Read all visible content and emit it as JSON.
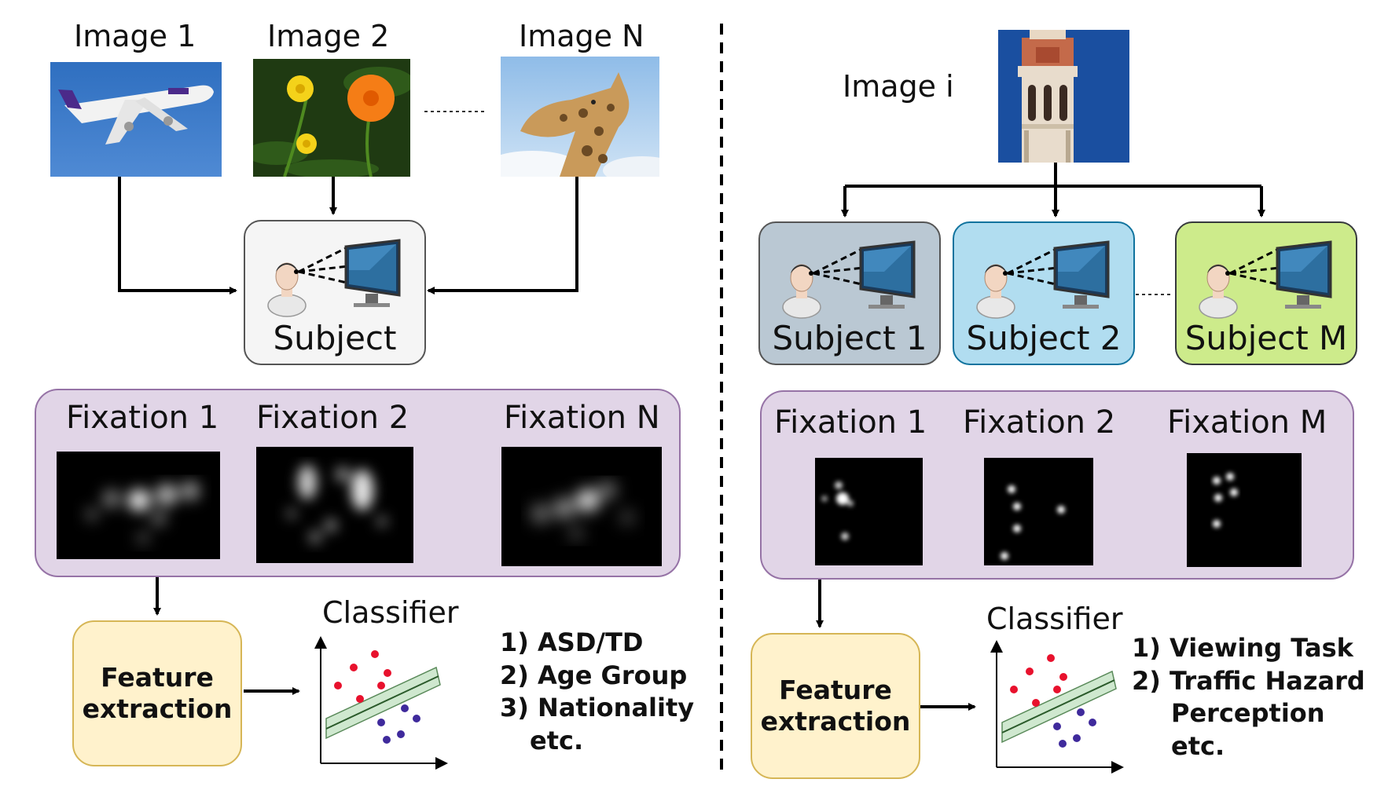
{
  "left": {
    "images": [
      {
        "label": "Image 1",
        "icon": "airplane-photo"
      },
      {
        "label": "Image 2",
        "icon": "flowers-photo"
      },
      {
        "label": "Image N",
        "icon": "giraffe-photo"
      }
    ],
    "subject": {
      "label": "Subject",
      "color": "#f5f5f5"
    },
    "fixations": [
      {
        "label": "Fixation 1"
      },
      {
        "label": "Fixation 2"
      },
      {
        "label": "Fixation N"
      }
    ],
    "feature": {
      "line1": "Feature",
      "line2": "extraction"
    },
    "classifier": {
      "title": "Classifier"
    },
    "tasks": [
      "1) ASD/TD",
      "2) Age Group",
      "3) Nationality",
      "etc."
    ]
  },
  "right": {
    "image": {
      "label": "Image i",
      "icon": "tower-photo"
    },
    "subjects": [
      {
        "label": "Subject 1",
        "color": "#bac8d3"
      },
      {
        "label": "Subject 2",
        "color": "#b1ddf0"
      },
      {
        "label": "Subject M",
        "color": "#cdeb8b"
      }
    ],
    "fixations": [
      {
        "label": "Fixation 1"
      },
      {
        "label": "Fixation 2"
      },
      {
        "label": "Fixation M"
      }
    ],
    "feature": {
      "line1": "Feature",
      "line2": "extraction"
    },
    "classifier": {
      "title": "Classifier"
    },
    "tasks": [
      "1) Viewing Task",
      "2) Traffic Hazard",
      "Perception",
      "etc."
    ]
  },
  "colors": {
    "fixation_panel": "#e1d5e7",
    "fixation_border": "#9673a6",
    "feature_fill": "#fff2cc",
    "feature_border": "#d6b656",
    "class_red": "#e8112d",
    "class_purple": "#3f2a9c",
    "margin_band": "#cfe8cf"
  }
}
